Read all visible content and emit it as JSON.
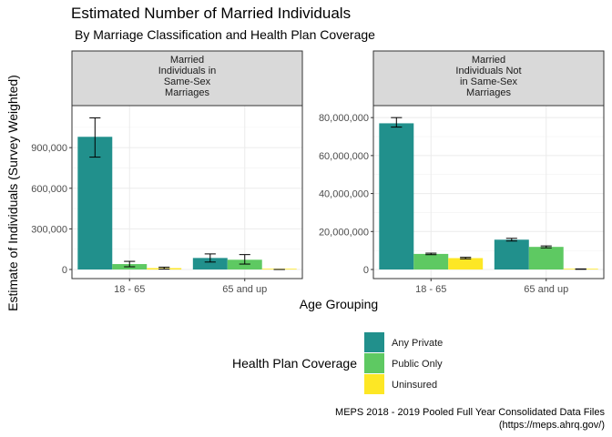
{
  "title": "Estimated Number of Married Individuals",
  "subtitle": "By Marriage Classification and Health Plan Coverage",
  "caption": [
    "MEPS 2018 - 2019 Pooled Full Year Consolidated Data Files",
    "(https://meps.ahrq.gov/)"
  ],
  "legend": {
    "title": "Health Plan Coverage",
    "items": [
      {
        "label": "Any Private",
        "color": "#21908C"
      },
      {
        "label": "Public Only",
        "color": "#5EC962"
      },
      {
        "label": "Uninsured",
        "color": "#FDE725"
      }
    ]
  },
  "chart_data": {
    "type": "bar",
    "xlabel": "Age Grouping",
    "ylabel": "Estimate of Individuals (Survey Weighted)",
    "categories": [
      "18 - 65",
      "65 and up"
    ],
    "grid": true,
    "legend_position": "bottom",
    "facets": [
      {
        "strip": [
          "Married",
          "Individuals in",
          "Same-Sex",
          "Marriages"
        ],
        "ylim": [
          0,
          1150000
        ],
        "yticks": [
          0,
          300000,
          600000,
          900000
        ],
        "ytick_labels": [
          "0",
          "300,000",
          "600,000",
          "900,000"
        ],
        "series": [
          {
            "name": "Any Private",
            "values": [
              980000,
              85000
            ],
            "err_low": [
              830000,
              55000
            ],
            "err_high": [
              1120000,
              115000
            ]
          },
          {
            "name": "Public Only",
            "values": [
              40000,
              72000
            ],
            "err_low": [
              20000,
              40000
            ],
            "err_high": [
              60000,
              110000
            ]
          },
          {
            "name": "Uninsured",
            "values": [
              10000,
              0
            ],
            "err_low": [
              3000,
              0
            ],
            "err_high": [
              17000,
              0
            ]
          }
        ]
      },
      {
        "strip": [
          "Married",
          "Individuals Not",
          "in Same-Sex",
          "Marriages"
        ],
        "ylim": [
          0,
          82000000
        ],
        "yticks": [
          0,
          20000000,
          40000000,
          60000000,
          80000000
        ],
        "ytick_labels": [
          "0",
          "20,000,000",
          "40,000,000",
          "60,000,000",
          "80,000,000"
        ],
        "series": [
          {
            "name": "Any Private",
            "values": [
              77000000,
              15700000
            ],
            "err_low": [
              75000000,
              15000000
            ],
            "err_high": [
              80000000,
              16400000
            ]
          },
          {
            "name": "Public Only",
            "values": [
              8200000,
              11900000
            ],
            "err_low": [
              7800000,
              11400000
            ],
            "err_high": [
              8600000,
              12400000
            ]
          },
          {
            "name": "Uninsured",
            "values": [
              6000000,
              200000
            ],
            "err_low": [
              5600000,
              100000
            ],
            "err_high": [
              6400000,
              300000
            ]
          }
        ]
      }
    ]
  }
}
